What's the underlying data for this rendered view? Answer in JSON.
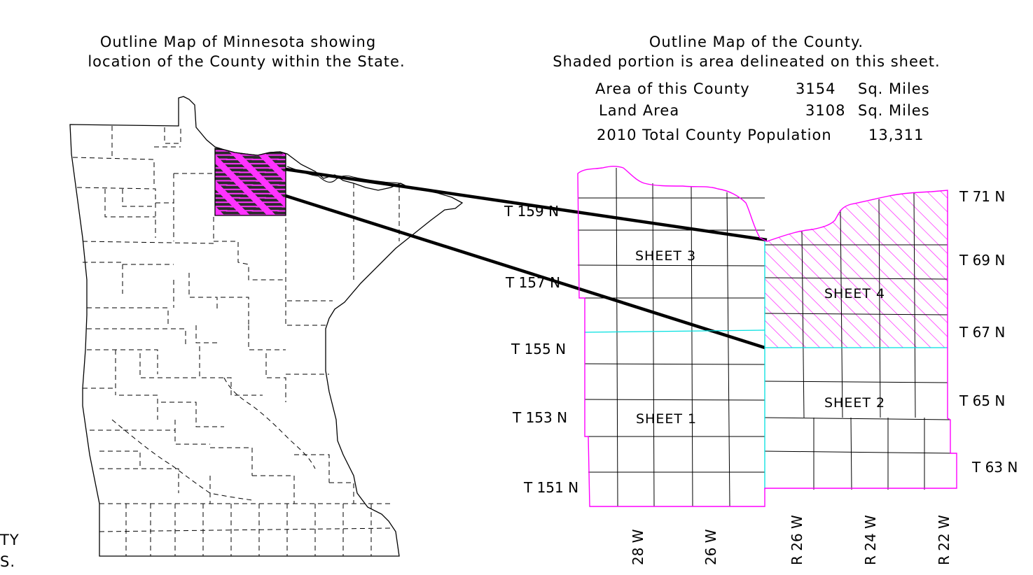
{
  "state_caption": {
    "line1": "Outline Map of Minnesota showing",
    "line2": "location of the County within the State."
  },
  "county_caption": {
    "line1": "Outline Map of the County.",
    "line2": "Shaded portion is area delineated on this sheet."
  },
  "stats": {
    "area_label": "Area of this County",
    "area_value": "3154",
    "area_unit": "Sq. Miles",
    "land_label": "Land Area",
    "land_value": "3108",
    "land_unit": "Sq. Miles",
    "population_label": "2010 Total County Population",
    "population_value": "13,311"
  },
  "sheets": {
    "sheet1": "SHEET 1",
    "sheet2": "SHEET 2",
    "sheet3": "SHEET 3",
    "sheet4": "SHEET 4"
  },
  "townships_left": [
    "T 159 N",
    "T 157 N",
    "T 155 N",
    "T 153 N",
    "T 151 N"
  ],
  "townships_right": [
    "T 71 N",
    "T 69 N",
    "T 67 N",
    "T 65 N",
    "T 63 N"
  ],
  "ranges": [
    "28 W",
    "26 W",
    "R 26 W",
    "R 24 W",
    "R 22 W"
  ],
  "edge_fragments": {
    "line1": "TY",
    "line2": "S."
  },
  "colors": {
    "county_boundary": "#ff00ff",
    "sheet_divider": "#00e0e0",
    "highlight_fill": "#ff33ff",
    "ink": "#000000"
  }
}
